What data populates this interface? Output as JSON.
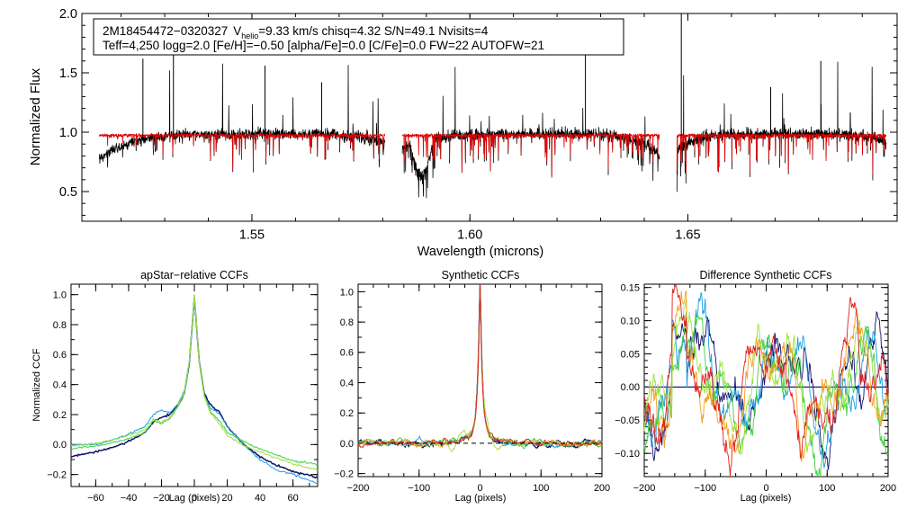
{
  "colors": {
    "observed": "#000000",
    "model": "#e00000",
    "zero_line": "#1a1a8c",
    "visits": [
      "#10106e",
      "#1a9fe0",
      "#40d040",
      "#a0e040",
      "#f0a020",
      "#e02020"
    ]
  },
  "chart_data": [
    {
      "id": "spectrum",
      "type": "line",
      "ylabel": "Normalized Flux",
      "xlabel": "Wavelength (microns)",
      "xlim": [
        1.511,
        1.698
      ],
      "ylim": [
        0.25,
        2.0
      ],
      "xticks": [
        1.55,
        1.6,
        1.65
      ],
      "xtick_labels": [
        "1.55",
        "1.60",
        "1.65"
      ],
      "yticks": [
        0.5,
        1.0,
        1.5,
        2.0
      ],
      "ytick_labels": [
        "0.5",
        "1.0",
        "1.5",
        "2.0"
      ],
      "chips": [
        [
          1.515,
          1.5805
        ],
        [
          1.5845,
          1.6435
        ],
        [
          1.6475,
          1.6955
        ]
      ],
      "series": [
        {
          "name": "observed spectrum",
          "color_key": "observed"
        },
        {
          "name": "synthetic model",
          "color_key": "model"
        }
      ],
      "legend": {
        "line1_star": "2M18454472−0320327",
        "line1_v": "V",
        "line1_vsub": "helio",
        "line1_rest": "=9.33 km/s  chisq=4.32  S/N=49.1  Nvisits=4",
        "line2": "Teff=4,250 logg=2.0 [Fe/H]=−0.50 [alpha/Fe]=0.0 [C/Fe]=0.0 FW=22 AUTOFW=21"
      }
    },
    {
      "id": "apstar",
      "type": "line",
      "title": "apStar−relative CCFs",
      "xlabel": "Lag (pixels)",
      "ylabel": "Normalized CCF",
      "xlim": [
        -75,
        75
      ],
      "ylim": [
        -0.28,
        1.07
      ],
      "xticks": [
        -60,
        -40,
        -20,
        0,
        20,
        40,
        60
      ],
      "xtick_labels": [
        "−60",
        "−40",
        "−20",
        "0",
        "20",
        "40",
        "60"
      ],
      "yticks": [
        -0.2,
        0.0,
        0.2,
        0.4,
        0.6,
        0.8,
        1.0
      ],
      "ytick_labels": [
        "−0.2",
        "0.0",
        "0.2",
        "0.4",
        "0.6",
        "0.8",
        "1.0"
      ],
      "series": [
        {
          "name": "navy",
          "x": [
            -75,
            -60,
            -50,
            -40,
            -30,
            -25,
            -20,
            -15,
            -10,
            -6,
            -3,
            0,
            3,
            6,
            10,
            15,
            20,
            30,
            40,
            50,
            60,
            75
          ],
          "y": [
            -0.08,
            -0.05,
            -0.02,
            0.02,
            0.08,
            0.15,
            0.18,
            0.2,
            0.26,
            0.34,
            0.55,
            0.98,
            0.55,
            0.34,
            0.26,
            0.22,
            0.12,
            0.0,
            -0.08,
            -0.14,
            -0.18,
            -0.22
          ]
        },
        {
          "name": "light blue",
          "x": [
            -75,
            -60,
            -50,
            -40,
            -30,
            -25,
            -20,
            -15,
            -10,
            -6,
            -3,
            0,
            3,
            6,
            10,
            15,
            20,
            30,
            40,
            50,
            60,
            75
          ],
          "y": [
            0.0,
            0.0,
            0.03,
            0.07,
            0.12,
            0.2,
            0.23,
            0.21,
            0.27,
            0.36,
            0.56,
            0.98,
            0.55,
            0.33,
            0.24,
            0.21,
            0.12,
            0.0,
            -0.1,
            -0.17,
            -0.2,
            -0.26
          ]
        },
        {
          "name": "green",
          "x": [
            -75,
            -60,
            -50,
            -40,
            -30,
            -25,
            -20,
            -15,
            -10,
            -6,
            -3,
            0,
            3,
            6,
            10,
            15,
            20,
            30,
            40,
            50,
            60,
            75
          ],
          "y": [
            -0.03,
            -0.01,
            0.01,
            0.04,
            0.08,
            0.16,
            0.14,
            0.17,
            0.25,
            0.34,
            0.55,
            1.0,
            0.55,
            0.33,
            0.22,
            0.16,
            0.08,
            0.02,
            -0.03,
            -0.07,
            -0.11,
            -0.13
          ]
        },
        {
          "name": "yellow-green",
          "x": [
            -75,
            -60,
            -50,
            -40,
            -30,
            -25,
            -20,
            -15,
            -10,
            -6,
            -3,
            0,
            3,
            6,
            10,
            15,
            20,
            30,
            40,
            50,
            60,
            75
          ],
          "y": [
            -0.01,
            0.01,
            0.03,
            0.06,
            0.1,
            0.17,
            0.15,
            0.18,
            0.26,
            0.35,
            0.56,
            0.99,
            0.54,
            0.32,
            0.21,
            0.14,
            0.06,
            -0.01,
            -0.05,
            -0.09,
            -0.13,
            -0.17
          ]
        }
      ]
    },
    {
      "id": "synthetic",
      "type": "line",
      "title": "Synthetic CCFs",
      "xlabel": "Lag (pixels)",
      "xlim": [
        -200,
        200
      ],
      "ylim": [
        -0.22,
        1.05
      ],
      "xticks": [
        -200,
        -100,
        0,
        100,
        200
      ],
      "xtick_labels": [
        "−200",
        "−100",
        "0",
        "100",
        "200"
      ],
      "yticks": [
        -0.2,
        0.0,
        0.2,
        0.4,
        0.6,
        0.8,
        1.0
      ],
      "ytick_labels": [
        "−0.2",
        "0.0",
        "0.2",
        "0.4",
        "0.6",
        "0.8",
        "1.0"
      ],
      "zero_line_y": 0.0,
      "peak_value": 1.0,
      "series_names": [
        "navy",
        "light blue",
        "green",
        "yellow-green",
        "orange",
        "red"
      ]
    },
    {
      "id": "difference",
      "type": "line",
      "title": "Difference Synthetic CCFs",
      "xlabel": "Lag (pixels)",
      "xlim": [
        -200,
        200
      ],
      "ylim": [
        -0.135,
        0.155
      ],
      "xticks": [
        -200,
        -100,
        0,
        100,
        200
      ],
      "xtick_labels": [
        "−200",
        "−100",
        "0",
        "100",
        "200"
      ],
      "yticks": [
        -0.1,
        -0.05,
        0.0,
        0.05,
        0.1,
        0.15
      ],
      "ytick_labels": [
        "−0.10",
        "−0.05",
        "0.00",
        "0.05",
        "0.10",
        "0.15"
      ],
      "zero_line_y": 0.0,
      "series_names": [
        "navy",
        "light blue",
        "green",
        "yellow-green",
        "orange",
        "red"
      ]
    }
  ]
}
